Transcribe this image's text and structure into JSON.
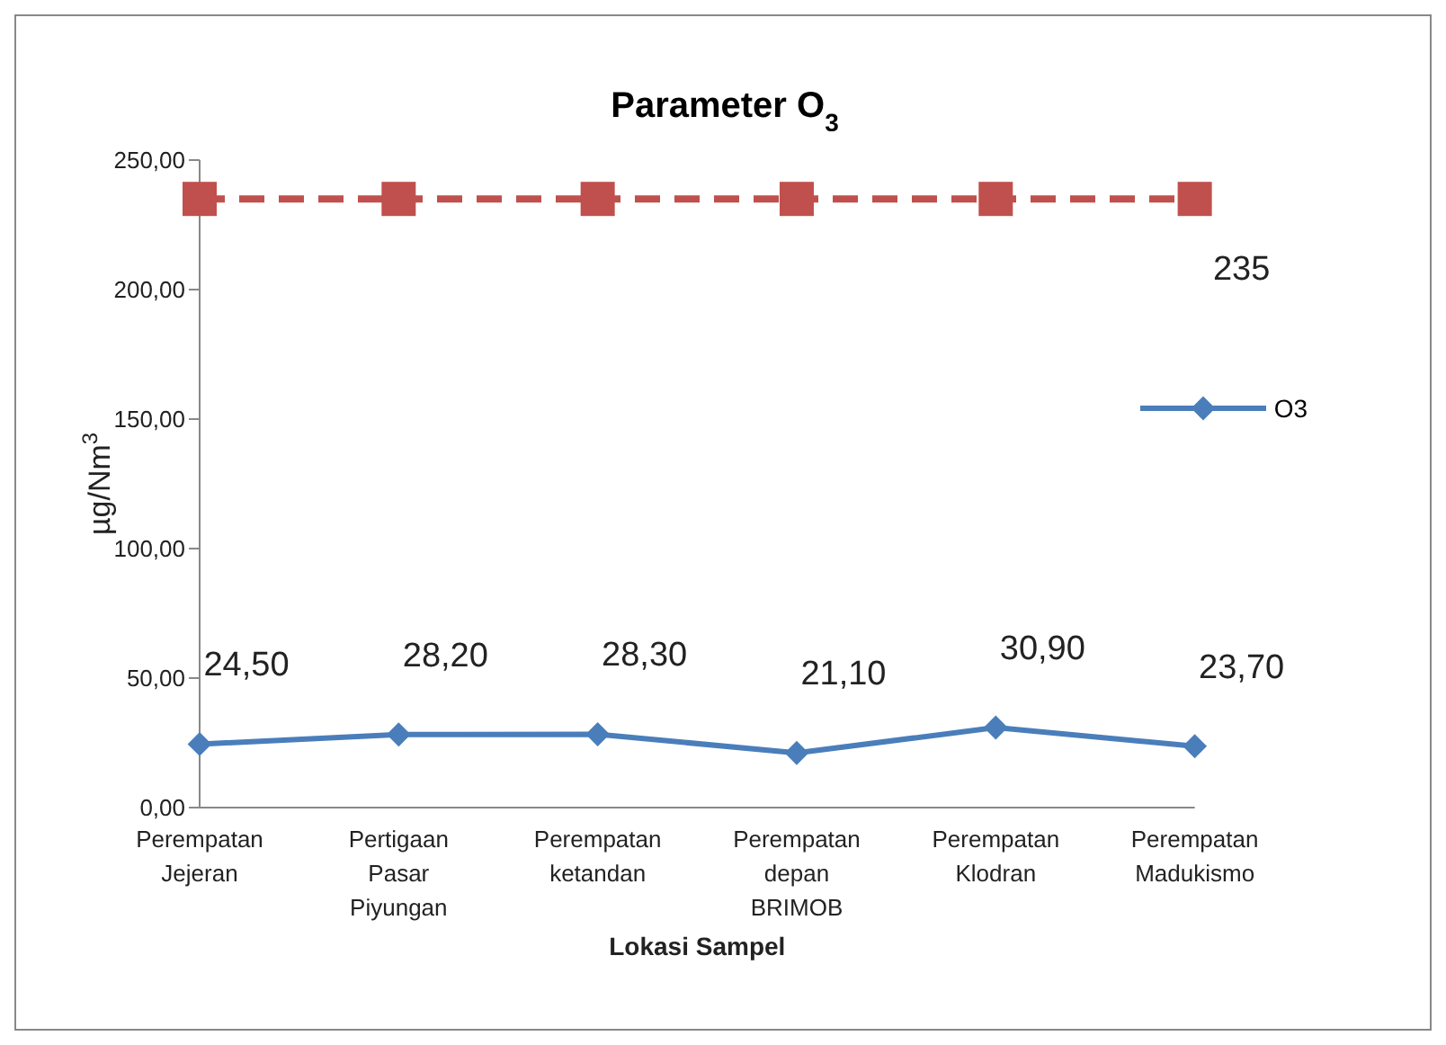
{
  "chart_data": {
    "type": "line",
    "title": "Parameter O$_{3}$",
    "xlabel": "Lokasi Sampel",
    "ylabel": "µg/Nm$^{3}$",
    "categories": [
      "Perempatan Jejeran",
      "Pertigaan Pasar Piyungan",
      "Perempatan ketandan",
      "Perempatan depan BRIMOB",
      "Perempatan Klodran",
      "Perempatan Madukismo"
    ],
    "series": [
      {
        "name": "O3",
        "color": "#4a7ebb",
        "marker": "diamond",
        "line_style": "solid",
        "values": [
          24.5,
          28.2,
          28.3,
          21.1,
          30.9,
          23.7
        ],
        "value_labels": [
          "24,50",
          "28,20",
          "28,30",
          "21,10",
          "30,90",
          "23,70"
        ]
      },
      {
        "color": "#c0504d",
        "marker": "square",
        "line_style": "dashed",
        "values": [
          235,
          235,
          235,
          235,
          235,
          235
        ],
        "value_labels": [
          null,
          null,
          null,
          null,
          null,
          "235"
        ]
      }
    ],
    "ylim": [
      0,
      250
    ],
    "yticks": [
      {
        "value": 0,
        "label": "0,00"
      },
      {
        "value": 50,
        "label": "50,00"
      },
      {
        "value": 100,
        "label": "100,00"
      },
      {
        "value": 150,
        "label": "150,00"
      },
      {
        "value": 200,
        "label": "200,00"
      },
      {
        "value": 250,
        "label": "250,00"
      }
    ],
    "grid": false,
    "legend": "right"
  }
}
